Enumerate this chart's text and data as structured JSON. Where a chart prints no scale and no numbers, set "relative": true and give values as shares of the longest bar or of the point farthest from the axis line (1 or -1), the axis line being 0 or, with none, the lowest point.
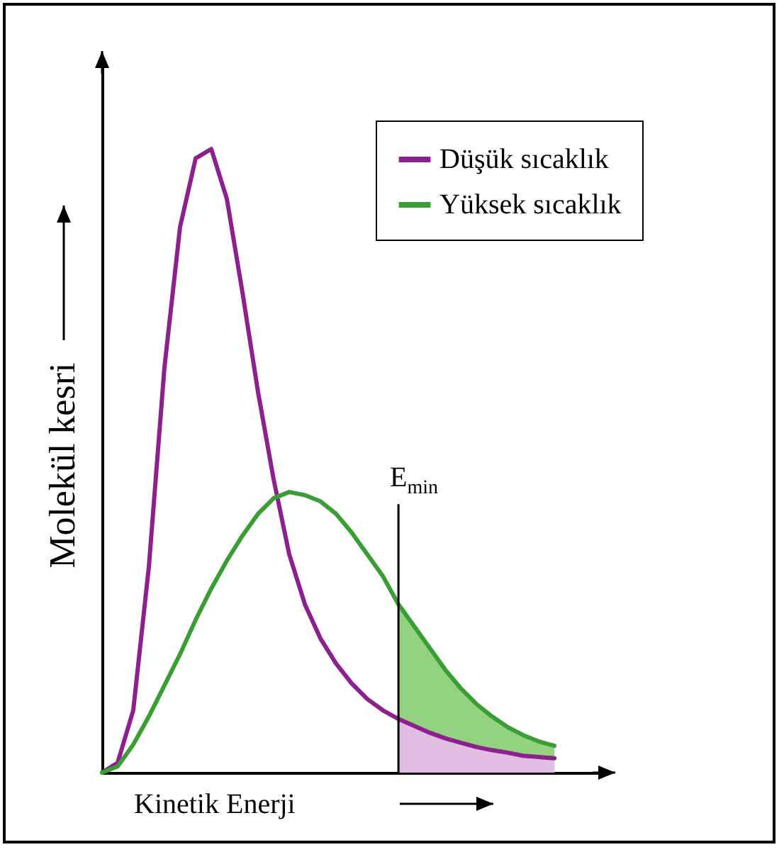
{
  "chart_data": {
    "type": "line",
    "relative": true,
    "xlabel": "Kinetik Enerji",
    "ylabel": "Molekül kesri",
    "legend": "top right",
    "tick_labels": false,
    "line_style": "solid",
    "categories": [
      null,
      null,
      null,
      null,
      null,
      null,
      null,
      null,
      null,
      null,
      null,
      null,
      null,
      null,
      null,
      null,
      null,
      null,
      null,
      null,
      null,
      null,
      null,
      null,
      null,
      null,
      null,
      null,
      null,
      null
    ],
    "series": [
      {
        "type": "area",
        "color": "#93d27f",
        "values": [
          null,
          null,
          null,
          null,
          null,
          null,
          null,
          null,
          null,
          null,
          null,
          null,
          null,
          null,
          null,
          null,
          null,
          null,
          null,
          0.27,
          0.235,
          0.2,
          0.165,
          0.135,
          0.11,
          0.09,
          0.073,
          0.06,
          0.05,
          0.043
        ]
      },
      {
        "type": "area",
        "color": "#e2bde2",
        "values": [
          null,
          null,
          null,
          null,
          null,
          null,
          null,
          null,
          null,
          null,
          null,
          null,
          null,
          null,
          null,
          null,
          null,
          null,
          null,
          0.086,
          0.075,
          0.064,
          0.055,
          0.048,
          0.041,
          0.036,
          0.032,
          0.027,
          0.025,
          0.023
        ]
      },
      {
        "name": "Düşük sıcaklık",
        "color": "#8e1f8e",
        "values": [
          0,
          0.016,
          0.1,
          0.33,
          0.65,
          0.875,
          0.985,
          1,
          0.92,
          0.77,
          0.61,
          0.47,
          0.35,
          0.27,
          0.215,
          0.175,
          0.143,
          0.118,
          0.1,
          0.086,
          0.075,
          0.064,
          0.055,
          0.048,
          0.041,
          0.036,
          0.032,
          0.027,
          0.025,
          0.023
        ]
      },
      {
        "name": "Yüksek sıcaklık",
        "color": "#3a9e35",
        "values": [
          0,
          0.01,
          0.045,
          0.09,
          0.14,
          0.19,
          0.245,
          0.295,
          0.34,
          0.38,
          0.415,
          0.44,
          0.45,
          0.445,
          0.435,
          0.415,
          0.385,
          0.35,
          0.315,
          0.27,
          0.235,
          0.2,
          0.165,
          0.135,
          0.11,
          0.09,
          0.073,
          0.06,
          0.05,
          0.043
        ]
      }
    ],
    "annotations": [
      "E$_{min}$"
    ]
  }
}
